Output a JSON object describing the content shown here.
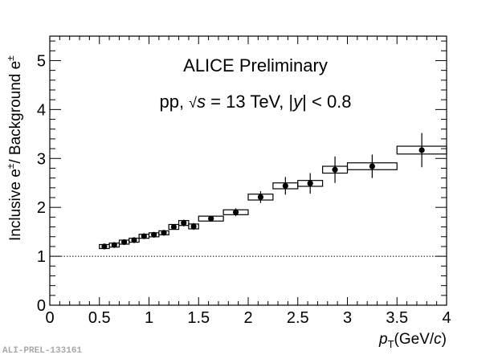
{
  "chart_data": {
    "type": "scatter",
    "title": "",
    "annotations": [
      "ALICE Preliminary",
      "pp, √s = 13 TeV, |y| < 0.8"
    ],
    "annotation_parts": {
      "line1": "ALICE Preliminary",
      "line2_prefix": "pp, ",
      "sqrt": "√",
      "s": "s",
      "line2_mid": " = 13 TeV, |",
      "y": "y",
      "line2_suffix": "| < 0.8"
    },
    "xlabel": "p_T(GeV/c)",
    "xlabel_parts": {
      "p": "p",
      "sub": "T",
      "unit_a": "(GeV/",
      "c": "c",
      "unit_b": ")"
    },
    "ylabel": "Inclusive e±/ Background e±",
    "ylabel_parts": {
      "a": "Inclusive e",
      "sup1": "±",
      "b": "/ Background e",
      "sup2": "±"
    },
    "xlim": [
      0,
      4
    ],
    "ylim": [
      0,
      5.5
    ],
    "xticks": [
      "0",
      "0.5",
      "1",
      "1.5",
      "2",
      "2.5",
      "3",
      "3.5",
      "4"
    ],
    "yticks": [
      "0",
      "1",
      "2",
      "3",
      "4",
      "5"
    ],
    "reference_line": {
      "y": 1,
      "style": "dotted"
    },
    "grid": false,
    "series": [
      {
        "name": "Inclusive/Background ratio",
        "points": [
          {
            "x": 0.55,
            "xlow": 0.5,
            "xhigh": 0.6,
            "y": 1.2,
            "stat": 0.02,
            "sys": 0.04
          },
          {
            "x": 0.65,
            "xlow": 0.6,
            "xhigh": 0.7,
            "y": 1.23,
            "stat": 0.02,
            "sys": 0.04
          },
          {
            "x": 0.75,
            "xlow": 0.7,
            "xhigh": 0.8,
            "y": 1.29,
            "stat": 0.02,
            "sys": 0.04
          },
          {
            "x": 0.85,
            "xlow": 0.8,
            "xhigh": 0.9,
            "y": 1.33,
            "stat": 0.02,
            "sys": 0.04
          },
          {
            "x": 0.95,
            "xlow": 0.9,
            "xhigh": 1.0,
            "y": 1.41,
            "stat": 0.02,
            "sys": 0.04
          },
          {
            "x": 1.05,
            "xlow": 1.0,
            "xhigh": 1.1,
            "y": 1.44,
            "stat": 0.03,
            "sys": 0.04
          },
          {
            "x": 1.15,
            "xlow": 1.1,
            "xhigh": 1.2,
            "y": 1.48,
            "stat": 0.03,
            "sys": 0.04
          },
          {
            "x": 1.25,
            "xlow": 1.2,
            "xhigh": 1.3,
            "y": 1.6,
            "stat": 0.04,
            "sys": 0.05
          },
          {
            "x": 1.35,
            "xlow": 1.3,
            "xhigh": 1.4,
            "y": 1.68,
            "stat": 0.07,
            "sys": 0.05
          },
          {
            "x": 1.45,
            "xlow": 1.4,
            "xhigh": 1.5,
            "y": 1.61,
            "stat": 0.07,
            "sys": 0.05
          },
          {
            "x": 1.625,
            "xlow": 1.5,
            "xhigh": 1.75,
            "y": 1.77,
            "stat": 0.06,
            "sys": 0.05
          },
          {
            "x": 1.875,
            "xlow": 1.75,
            "xhigh": 2.0,
            "y": 1.9,
            "stat": 0.08,
            "sys": 0.05
          },
          {
            "x": 2.125,
            "xlow": 2.0,
            "xhigh": 2.25,
            "y": 2.21,
            "stat": 0.12,
            "sys": 0.06
          },
          {
            "x": 2.375,
            "xlow": 2.25,
            "xhigh": 2.5,
            "y": 2.44,
            "stat": 0.18,
            "sys": 0.06
          },
          {
            "x": 2.625,
            "xlow": 2.5,
            "xhigh": 2.75,
            "y": 2.49,
            "stat": 0.21,
            "sys": 0.06
          },
          {
            "x": 2.875,
            "xlow": 2.75,
            "xhigh": 3.0,
            "y": 2.77,
            "stat": 0.27,
            "sys": 0.07
          },
          {
            "x": 3.25,
            "xlow": 3.0,
            "xhigh": 3.5,
            "y": 2.84,
            "stat": 0.24,
            "sys": 0.07
          },
          {
            "x": 3.75,
            "xlow": 3.5,
            "xhigh": 4.0,
            "y": 3.17,
            "stat": 0.35,
            "sys": 0.08
          }
        ]
      }
    ]
  },
  "footer": {
    "figure_id": "ALI-PREL-133161"
  }
}
